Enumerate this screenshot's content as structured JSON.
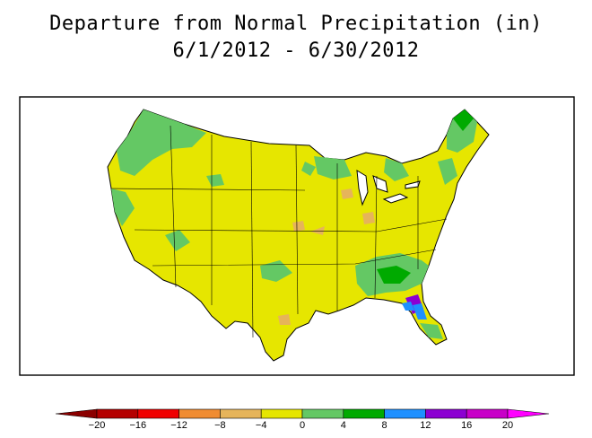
{
  "title": {
    "line1": "Departure from Normal Precipitation (in)",
    "line2": "6/1/2012 - 6/30/2012"
  },
  "legend": {
    "ticks": [
      "−20",
      "−16",
      "−12",
      "−8",
      "−4",
      "0",
      "4",
      "8",
      "12",
      "16",
      "20"
    ],
    "bins": [
      {
        "from": -20,
        "to": -16,
        "color": "#b40000"
      },
      {
        "from": -16,
        "to": -12,
        "color": "#f00000"
      },
      {
        "from": -12,
        "to": -8,
        "color": "#f08c32"
      },
      {
        "from": -8,
        "to": -4,
        "color": "#e6b45a"
      },
      {
        "from": -4,
        "to": 0,
        "color": "#e6e600"
      },
      {
        "from": 0,
        "to": 4,
        "color": "#64c864"
      },
      {
        "from": 4,
        "to": 8,
        "color": "#00aa00"
      },
      {
        "from": 8,
        "to": 12,
        "color": "#1e90ff"
      },
      {
        "from": 12,
        "to": 16,
        "color": "#8c00d2"
      },
      {
        "from": 16,
        "to": 20,
        "color": "#c800c8"
      }
    ],
    "low_cap_color": "#8b0000",
    "high_cap_color": "#ff00ff"
  },
  "map": {
    "base_color": "#e6e600",
    "state_line_color": "#000000",
    "region": "Contiguous United States"
  }
}
